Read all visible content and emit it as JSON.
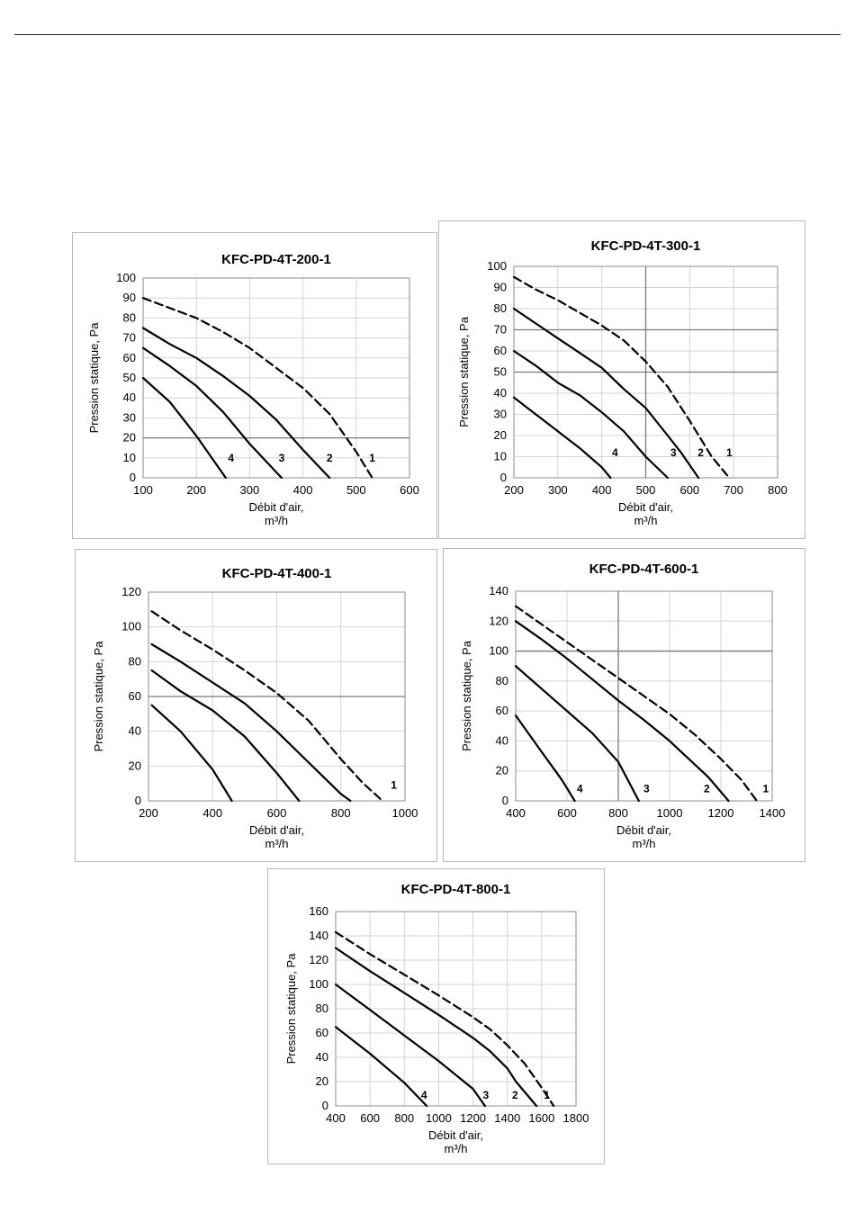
{
  "chart_data": [
    {
      "type": "line",
      "title": "KFC-PD-4T-200-1",
      "xlabel": "Débit d'air,",
      "xunit": "m³/h",
      "ylabel": "Pression statique, Pa",
      "xlim": [
        100,
        600
      ],
      "ylim": [
        0,
        100
      ],
      "xticks": [
        100,
        200,
        300,
        400,
        500,
        600
      ],
      "yticks": [
        0,
        10,
        20,
        30,
        40,
        50,
        60,
        70,
        80,
        90,
        100
      ],
      "grid": {
        "x": [],
        "y": [
          20
        ]
      },
      "series": [
        {
          "name": "1",
          "dash": true,
          "x": [
            100,
            150,
            200,
            250,
            300,
            350,
            400,
            450,
            500,
            530
          ],
          "y": [
            90,
            85,
            80,
            73,
            65,
            55,
            45,
            32,
            13,
            0
          ]
        },
        {
          "name": "2",
          "dash": false,
          "x": [
            100,
            150,
            200,
            250,
            300,
            350,
            400,
            450
          ],
          "y": [
            75,
            67,
            60,
            51,
            41,
            29,
            14,
            0
          ]
        },
        {
          "name": "3",
          "dash": false,
          "x": [
            100,
            150,
            200,
            250,
            300,
            360
          ],
          "y": [
            65,
            56,
            46,
            33,
            17,
            0
          ]
        },
        {
          "name": "4",
          "dash": false,
          "x": [
            100,
            150,
            200,
            255
          ],
          "y": [
            50,
            38,
            21,
            0
          ]
        }
      ],
      "labels": [
        {
          "text": "4",
          "x": 265,
          "y": 10
        },
        {
          "text": "3",
          "x": 360,
          "y": 10
        },
        {
          "text": "2",
          "x": 450,
          "y": 10
        },
        {
          "text": "1",
          "x": 530,
          "y": 10
        }
      ]
    },
    {
      "type": "line",
      "title": "KFC-PD-4T-300-1",
      "xlabel": "Débit d'air,",
      "xunit": "m³/h",
      "ylabel": "Pression statique, Pa",
      "xlim": [
        200,
        800
      ],
      "ylim": [
        0,
        100
      ],
      "xticks": [
        200,
        300,
        400,
        500,
        600,
        700,
        800
      ],
      "yticks": [
        0,
        10,
        20,
        30,
        40,
        50,
        60,
        70,
        80,
        90,
        100
      ],
      "grid": {
        "x": [
          500
        ],
        "y": [
          50,
          70
        ]
      },
      "series": [
        {
          "name": "1",
          "dash": true,
          "x": [
            200,
            250,
            300,
            350,
            400,
            450,
            500,
            550,
            600,
            650,
            690
          ],
          "y": [
            95,
            89,
            84,
            78,
            72,
            65,
            55,
            43,
            27,
            10,
            0
          ]
        },
        {
          "name": "2",
          "dash": false,
          "x": [
            200,
            250,
            300,
            350,
            400,
            450,
            500,
            550,
            580,
            620
          ],
          "y": [
            80,
            73,
            66,
            59,
            52,
            42,
            33,
            20,
            12,
            0
          ]
        },
        {
          "name": "3",
          "dash": false,
          "x": [
            200,
            250,
            300,
            350,
            400,
            450,
            500,
            550
          ],
          "y": [
            60,
            53,
            45,
            39,
            31,
            22,
            10,
            0
          ]
        },
        {
          "name": "4",
          "dash": false,
          "x": [
            200,
            250,
            300,
            350,
            400,
            420
          ],
          "y": [
            38,
            30,
            22,
            14,
            5,
            0
          ]
        }
      ],
      "labels": [
        {
          "text": "4",
          "x": 430,
          "y": 12
        },
        {
          "text": "3",
          "x": 563,
          "y": 12
        },
        {
          "text": "2",
          "x": 625,
          "y": 12
        },
        {
          "text": "1",
          "x": 690,
          "y": 12
        }
      ]
    },
    {
      "type": "line",
      "title": "KFC-PD-4T-400-1",
      "xlabel": "Débit d'air,",
      "xunit": "m³/h",
      "ylabel": "Pression statique, Pa",
      "xlim": [
        200,
        1000
      ],
      "ylim": [
        0,
        120
      ],
      "xticks": [
        200,
        400,
        600,
        800,
        1000
      ],
      "yticks": [
        0,
        20,
        40,
        60,
        80,
        100,
        120
      ],
      "grid": {
        "x": [],
        "y": [
          60
        ]
      },
      "series": [
        {
          "name": "1",
          "dash": true,
          "x": [
            210,
            300,
            400,
            500,
            600,
            700,
            800,
            870,
            930
          ],
          "y": [
            109,
            98,
            87,
            75,
            62,
            46,
            24,
            10,
            0
          ]
        },
        {
          "name": "2",
          "dash": false,
          "x": [
            210,
            300,
            400,
            500,
            600,
            700,
            800,
            830
          ],
          "y": [
            90,
            80,
            68,
            56,
            40,
            22,
            4,
            0
          ]
        },
        {
          "name": "3",
          "dash": false,
          "x": [
            210,
            300,
            400,
            500,
            600,
            670
          ],
          "y": [
            75,
            63,
            52,
            37,
            16,
            0
          ]
        },
        {
          "name": "4",
          "dash": false,
          "x": [
            210,
            300,
            400,
            460
          ],
          "y": [
            55,
            40,
            18,
            0
          ]
        }
      ],
      "labels": [
        {
          "text": "1",
          "x": 965,
          "y": 9
        }
      ]
    },
    {
      "type": "line",
      "title": "KFC-PD-4T-600-1",
      "xlabel": "Débit d'air,",
      "xunit": "m³/h",
      "ylabel": "Pression statique, Pa",
      "xlim": [
        400,
        1400
      ],
      "ylim": [
        0,
        140
      ],
      "xticks": [
        400,
        600,
        800,
        1000,
        1200,
        1400
      ],
      "yticks": [
        0,
        20,
        40,
        60,
        80,
        100,
        120,
        140
      ],
      "grid": {
        "x": [
          800
        ],
        "y": [
          100
        ]
      },
      "series": [
        {
          "name": "1",
          "dash": true,
          "x": [
            400,
            500,
            600,
            700,
            800,
            900,
            1000,
            1100,
            1200,
            1280,
            1340
          ],
          "y": [
            130,
            118,
            106,
            94,
            82,
            70,
            58,
            44,
            28,
            14,
            0
          ]
        },
        {
          "name": "2",
          "dash": false,
          "x": [
            400,
            500,
            600,
            700,
            800,
            900,
            1000,
            1100,
            1150,
            1230
          ],
          "y": [
            120,
            108,
            95,
            81,
            67,
            54,
            40,
            24,
            16,
            0
          ]
        },
        {
          "name": "3",
          "dash": false,
          "x": [
            400,
            500,
            600,
            700,
            800,
            880
          ],
          "y": [
            90,
            75,
            60,
            45,
            26,
            0
          ]
        },
        {
          "name": "4",
          "dash": false,
          "x": [
            400,
            500,
            580,
            630
          ],
          "y": [
            57,
            33,
            14,
            0
          ]
        }
      ],
      "labels": [
        {
          "text": "4",
          "x": 650,
          "y": 8
        },
        {
          "text": "3",
          "x": 910,
          "y": 8
        },
        {
          "text": "2",
          "x": 1145,
          "y": 8
        },
        {
          "text": "1",
          "x": 1375,
          "y": 8
        }
      ]
    },
    {
      "type": "line",
      "title": "KFC-PD-4T-800-1",
      "xlabel": "Débit d'air,",
      "xunit": "m³/h",
      "ylabel": "Pression statique, Pa",
      "xlim": [
        400,
        1800
      ],
      "ylim": [
        0,
        160
      ],
      "xticks": [
        400,
        600,
        800,
        1000,
        1200,
        1400,
        1600,
        1800
      ],
      "yticks": [
        0,
        20,
        40,
        60,
        80,
        100,
        120,
        140,
        160
      ],
      "grid": {
        "x": [],
        "y": []
      },
      "series": [
        {
          "name": "1",
          "dash": true,
          "x": [
            400,
            600,
            800,
            1000,
            1200,
            1300,
            1400,
            1500,
            1600,
            1670
          ],
          "y": [
            143,
            125,
            108,
            91,
            73,
            63,
            50,
            35,
            15,
            0
          ]
        },
        {
          "name": "2",
          "dash": false,
          "x": [
            400,
            600,
            800,
            1000,
            1200,
            1300,
            1400,
            1450,
            1570
          ],
          "y": [
            130,
            111,
            93,
            75,
            56,
            45,
            31,
            20,
            0
          ]
        },
        {
          "name": "3",
          "dash": false,
          "x": [
            400,
            600,
            800,
            1000,
            1200,
            1270
          ],
          "y": [
            100,
            79,
            58,
            37,
            14,
            0
          ]
        },
        {
          "name": "4",
          "dash": false,
          "x": [
            400,
            600,
            800,
            930
          ],
          "y": [
            65,
            43,
            19,
            0
          ]
        }
      ],
      "labels": [
        {
          "text": "4",
          "x": 915,
          "y": 9
        },
        {
          "text": "3",
          "x": 1275,
          "y": 9
        },
        {
          "text": "2",
          "x": 1445,
          "y": 9
        },
        {
          "text": "1",
          "x": 1630,
          "y": 9
        }
      ]
    }
  ]
}
